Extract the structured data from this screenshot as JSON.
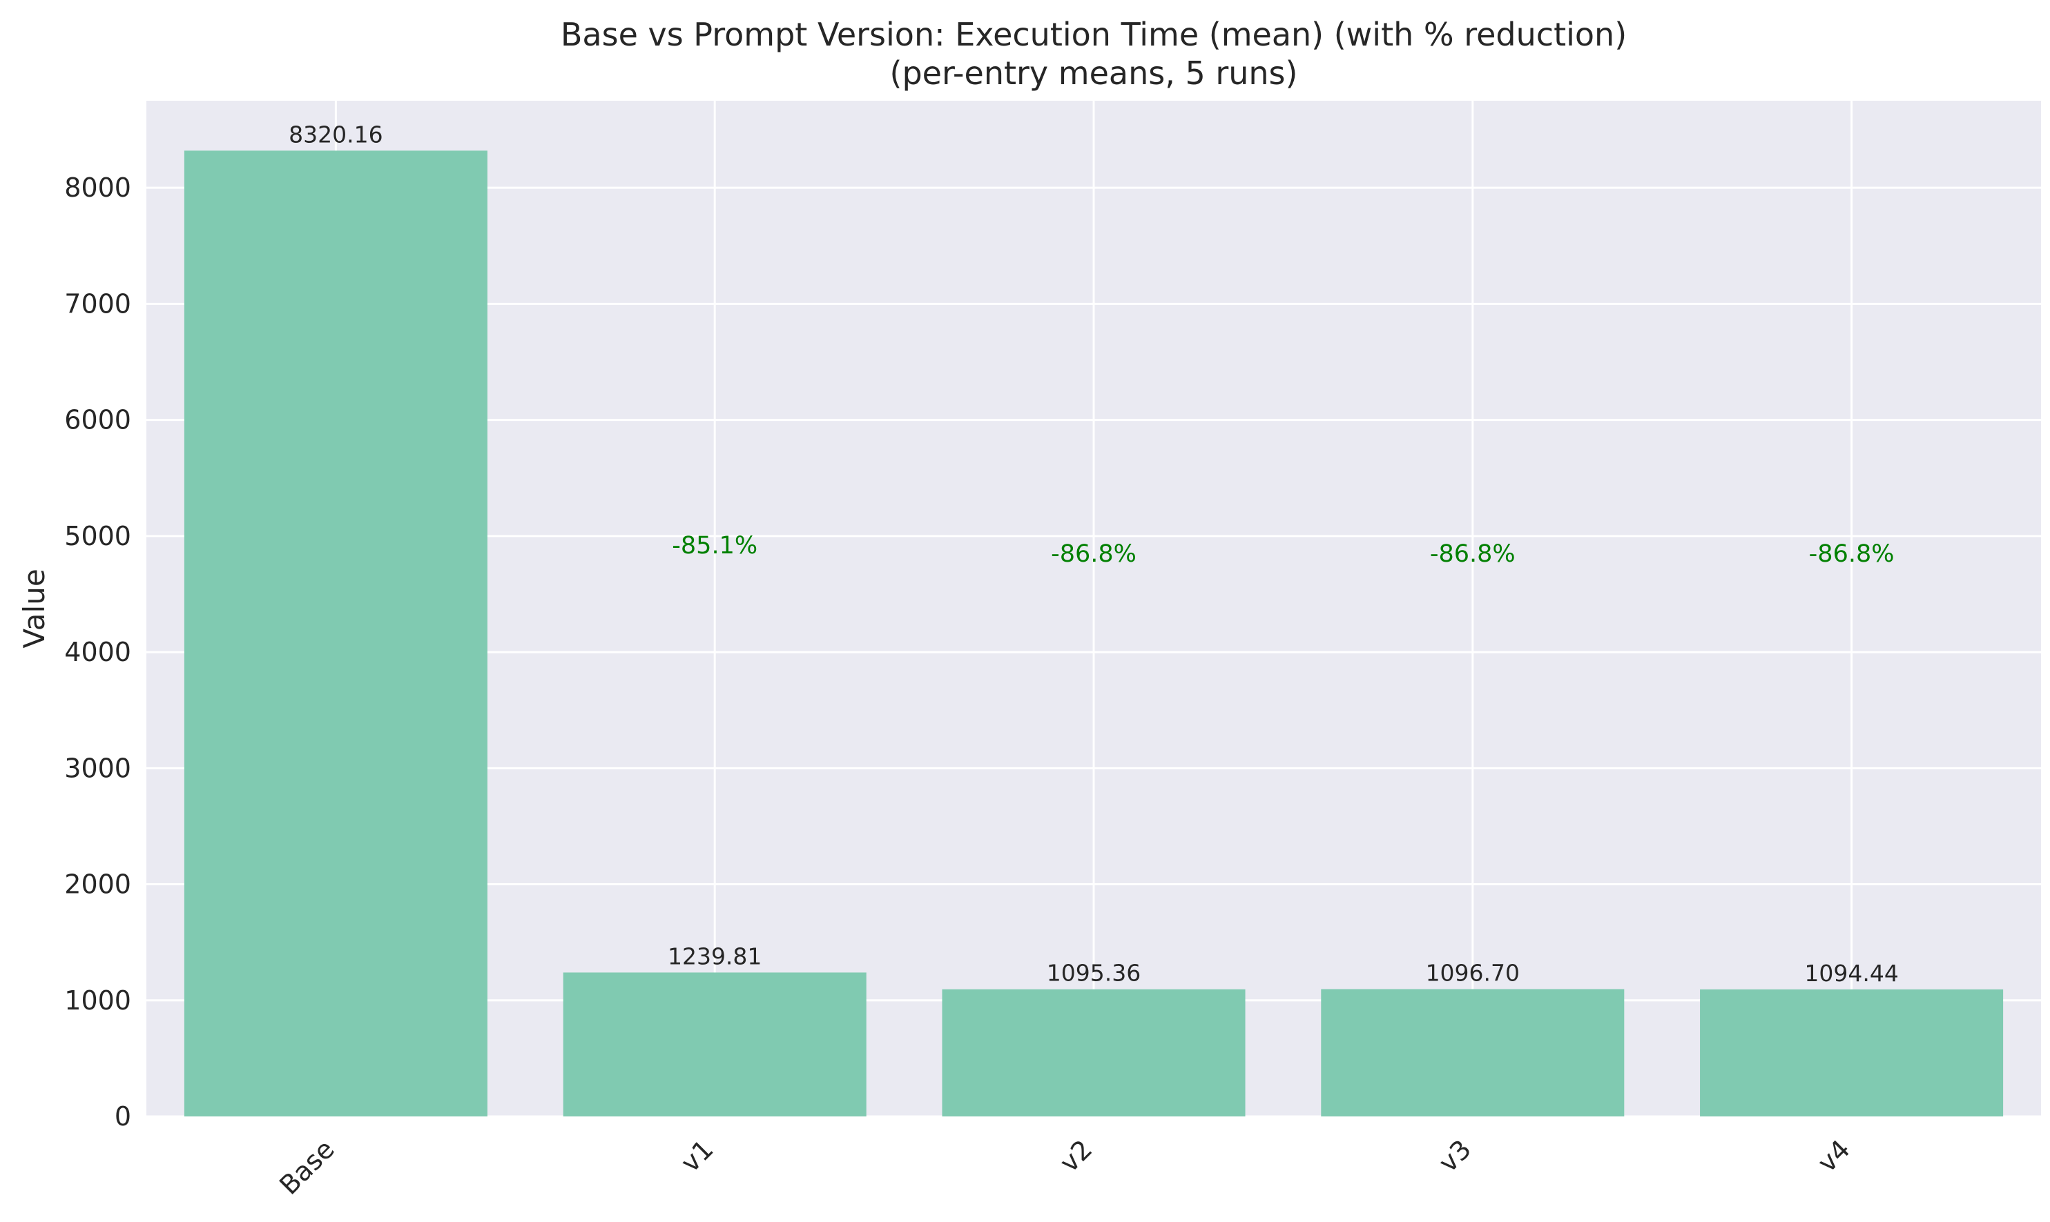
{
  "chart_data": {
    "type": "bar",
    "title": "Base vs Prompt Version: Execution Time (mean) (with % reduction)",
    "subtitle": "(per-entry means, 5 runs)",
    "xlabel": "",
    "ylabel": "Value",
    "categories": [
      "Base",
      "v1",
      "v2",
      "v3",
      "v4"
    ],
    "values": [
      8320.16,
      1239.81,
      1095.36,
      1096.7,
      1094.44
    ],
    "value_labels": [
      "8320.16",
      "1239.81",
      "1095.36",
      "1096.70",
      "1094.44"
    ],
    "pct_labels": [
      "",
      "-85.1%",
      "-86.8%",
      "-86.8%",
      "-86.8%"
    ],
    "pct_label_y": [
      null,
      4850,
      4780,
      4780,
      4780
    ],
    "ylim": [
      0,
      8750
    ],
    "yticks": [
      0,
      1000,
      2000,
      3000,
      4000,
      5000,
      6000,
      7000,
      8000
    ],
    "grid": true,
    "colors": {
      "bar": "#80CAB1",
      "plot_background": "#EAEAF2",
      "grid": "#FFFFFF",
      "pct_text": "#008000",
      "text": "#262626"
    }
  }
}
